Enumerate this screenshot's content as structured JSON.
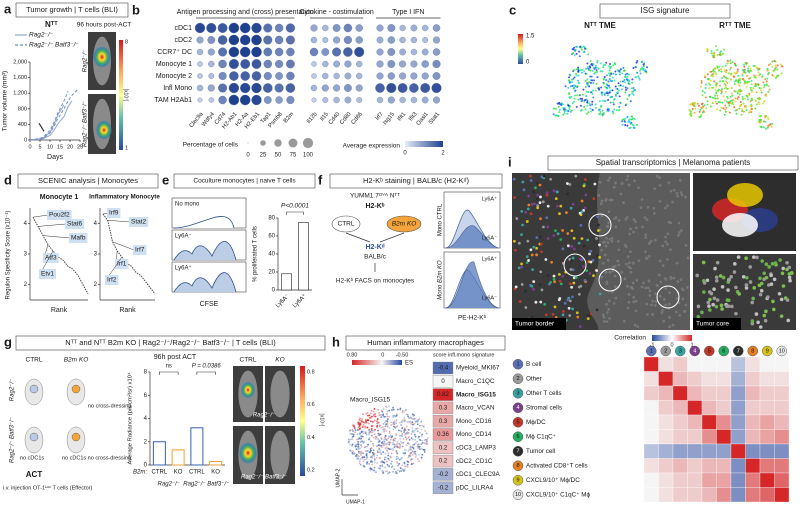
{
  "a": {
    "letter": "a",
    "title": "Tumor growth | T cells (BLI)",
    "model": "Nᵀᵀ",
    "timepoint": "96 hours post-ACT",
    "chart_data": {
      "type": "line",
      "ylabel": "Tumor volume (mm³)",
      "xlabel": "Days",
      "x": [
        0,
        5,
        7,
        10,
        12,
        14,
        17,
        19,
        21,
        24
      ],
      "xlim": [
        0,
        25
      ],
      "xticks": [
        0,
        5,
        10,
        15,
        20,
        25
      ],
      "ylim": [
        0,
        2000
      ],
      "yticks": [
        0,
        400,
        800,
        {
          "value": 1200,
          "label": "1,200"
        },
        {
          "value": 1600,
          "label": "1,600"
        },
        {
          "value": 2000,
          "label": "2,000"
        }
      ],
      "series": [
        {
          "name": "Rag2⁻/⁻",
          "color": "#8fa8d0",
          "dash": false,
          "values": [
            0,
            30,
            70,
            200,
            400,
            650,
            900,
            null,
            null,
            null
          ]
        },
        {
          "color": "#8fa8d0",
          "dash": false,
          "values": [
            0,
            20,
            40,
            120,
            250,
            420,
            600,
            850,
            1000,
            null
          ]
        },
        {
          "name": "Rag2⁻/⁻ Batf3⁻/⁻",
          "color": "#6f8fc4",
          "dash": true,
          "values": [
            0,
            40,
            90,
            250,
            450,
            700,
            1000,
            1250,
            null,
            null
          ]
        },
        {
          "color": "#6f8fc4",
          "dash": true,
          "values": [
            0,
            30,
            60,
            180,
            350,
            550,
            800,
            1000,
            1150,
            1300
          ]
        }
      ]
    },
    "images": [
      "Rag2⁻/⁻",
      "Rag2⁻/⁻ Batf3⁻/⁻"
    ],
    "colorbar": {
      "max": "8",
      "min": "1",
      "unit": "[x10⁷]"
    }
  },
  "b": {
    "letter": "b",
    "groups": [
      "Antigen processing and (cross) presentation",
      "Cytokine - costimulation",
      "Type I IFN"
    ],
    "chart_data": {
      "type": "dot",
      "categories": [
        "cDC1",
        "cDC2",
        "CCR7⁺ DC",
        "Monocyte 1",
        "Monocyte 2",
        "Infl Mono",
        "TAM H2Ab1"
      ],
      "genes": [
        [
          "Clec9a",
          "Wdfy4",
          "Cd74",
          "H2-Ab1",
          "H2-Aa",
          "H2-Eb1",
          "Tap1",
          "Psmb8",
          "B2m"
        ],
        [
          "Il12b",
          "Il15",
          "Cd40",
          "Cd80",
          "Cd86"
        ],
        [
          "Irf7",
          "Isg15",
          "Ifit1",
          "Ifit3",
          "Oasl1",
          "Stat1"
        ]
      ],
      "matrix": [
        [
          95,
          90,
          85,
          100,
          100,
          95,
          70,
          60,
          75,
          40,
          30,
          50,
          60,
          45,
          40,
          50,
          30,
          35,
          30,
          45
        ],
        [
          40,
          50,
          80,
          100,
          100,
          100,
          70,
          60,
          70,
          30,
          25,
          40,
          55,
          45,
          35,
          45,
          30,
          30,
          25,
          40
        ],
        [
          30,
          40,
          70,
          100,
          100,
          100,
          65,
          60,
          60,
          60,
          50,
          70,
          80,
          90,
          40,
          50,
          35,
          30,
          35,
          45
        ],
        [
          20,
          30,
          60,
          90,
          85,
          85,
          60,
          55,
          65,
          20,
          30,
          35,
          40,
          30,
          40,
          50,
          40,
          40,
          45,
          55
        ],
        [
          20,
          25,
          55,
          80,
          80,
          80,
          55,
          50,
          60,
          20,
          30,
          30,
          35,
          30,
          40,
          45,
          40,
          40,
          40,
          50
        ],
        [
          30,
          40,
          70,
          95,
          95,
          95,
          80,
          70,
          80,
          30,
          40,
          40,
          50,
          40,
          80,
          90,
          85,
          80,
          85,
          90
        ],
        [
          15,
          20,
          60,
          100,
          100,
          95,
          50,
          45,
          55,
          15,
          25,
          30,
          35,
          25,
          30,
          40,
          30,
          30,
          35,
          40
        ]
      ],
      "size_legend": {
        "title": "Percentage of cells",
        "values": [
          0,
          25,
          50,
          75,
          100
        ]
      },
      "color_legend": {
        "title": "Average expression",
        "ticks": [
          0,
          2
        ]
      }
    }
  },
  "c": {
    "letter": "c",
    "title": "ISG signature",
    "panels": [
      "Nᵀᵀ TME",
      "Rᵀᵀ TME"
    ],
    "colorbar": [
      1.5,
      0
    ]
  },
  "d": {
    "letter": "d",
    "title": "SCENIC analysis | Monocytes",
    "chart_data": {
      "type": "line",
      "ylabel": "Regulon Specificity Score (x10⁻¹)",
      "xlabel": "Rank",
      "ylim": [
        1.5,
        4.5
      ],
      "yticks": [
        2,
        3,
        4
      ],
      "panels": [
        {
          "title": "Monocyte 1",
          "regulons": [
            "Pou2f2",
            "Stat6",
            "Mafb",
            "Atf3",
            "Etv1"
          ],
          "values": [
            4.2,
            3.9,
            3.6,
            3.3,
            3.1,
            2.9,
            2.8,
            2.6,
            2.5,
            2.3,
            2.0,
            1.7
          ]
        },
        {
          "title": "Inflammatory Monocyte",
          "regulons": [
            "Irf9",
            "Stat2",
            "Irf7",
            "Irf1",
            "Irf2"
          ],
          "values": [
            4.3,
            4.1,
            3.4,
            3.1,
            2.9,
            2.7,
            2.6,
            2.4,
            2.3,
            2.1,
            1.9,
            1.7
          ]
        }
      ]
    }
  },
  "e": {
    "letter": "e",
    "title": "Coculture monocytes | naive T cells",
    "histograms": [
      "No mono",
      "Ly6A⁻",
      "Ly6A⁺"
    ],
    "xlabel": "CFSE",
    "chart_data": {
      "type": "bar",
      "categories": [
        "Ly6A⁻",
        "Ly6A⁺"
      ],
      "values": [
        18,
        75
      ],
      "ylim": [
        0,
        80
      ],
      "yticks": [
        0,
        20,
        40,
        60,
        80
      ],
      "ylabel": "% proliferated T cells",
      "annotation": "P<0.0001",
      "color": "#ffffff"
    }
  },
  "f": {
    "letter": "f",
    "title": "H2-Kᵇ staining | BALB/c (H2-Kᵈ)",
    "tumor": "YUMM1.7ᴼⱽᴬ Nᵀᵀ",
    "antigen": "H2-Kᵇ",
    "ctrl": "CTRL",
    "ko": "B2m KO",
    "host_mhc": "H2-Kᵈ",
    "host": "BALB/c",
    "readout": "H2-Kᵇ FACS on monocytes",
    "hist": [
      {
        "label": "Mono CTRL",
        "gates": [
          "Ly6A⁺",
          "Ly6A⁻"
        ]
      },
      {
        "label": "Mono B2m KO",
        "gates": [
          "Ly6A⁺",
          "Ly6A⁻"
        ]
      }
    ],
    "xlabel": "PE-H2-Kᵇ"
  },
  "g": {
    "letter": "g",
    "title": "Nᵀᵀ and Nᵀᵀ B2m KO | Rag2⁻/⁻/Rag2⁻/⁻ Batf3⁻/⁻ | T cells (BLI)",
    "schematic": {
      "ctrl": "CTRL",
      "ko": "B2m KO",
      "hosts": [
        "Rag2⁻/⁻",
        "Rag2⁻/⁻ Batf3⁻/⁻"
      ],
      "notes": [
        "no cross-dressing",
        "no cDC1s",
        "no cDC1s no cross-dressing"
      ],
      "act": "ACT",
      "injection": "i.v. injection OT-1ᴸᵘᶜ T cells (Effector)"
    },
    "chart_data": {
      "type": "bar",
      "title": "96h post ACT",
      "ylabel": "Average Radiance (p/s/cm²/sr) x10⁴",
      "categories": [
        "CTRL",
        "KO",
        "CTRL",
        "KO"
      ],
      "groups": [
        "Rag2⁻/⁻",
        "Rag2⁻/⁻ Batf3⁻/⁻"
      ],
      "group_label": "B2m:",
      "values": [
        2.0,
        1.3,
        3.2,
        0.3
      ],
      "colors": [
        "#3a5fb0",
        "#f0a030",
        "#3a5fb0",
        "#f0a030"
      ],
      "ylim": [
        0,
        8
      ],
      "yticks": [
        0,
        2,
        4,
        6,
        8
      ],
      "annotations": [
        "ns",
        "P = 0.0386"
      ]
    },
    "images": {
      "columns": [
        "CTRL",
        "KO"
      ],
      "rows": [
        "Rag2⁻/⁻",
        "Rag2⁻/⁻ Batf3⁻/⁻"
      ],
      "colorbar": [
        0.8,
        0.6,
        0.4,
        0.2
      ],
      "unit": "[x10⁵]"
    }
  },
  "h": {
    "letter": "h",
    "title": "Human inflammatory macrophages",
    "legend_title": "score infl.mono signature",
    "colorbar": {
      "ticks": [
        {
          "value": 0.8,
          "label": "0.80"
        },
        0,
        {
          "value": -0.5,
          "label": "-0.50"
        }
      ],
      "unit": "ES"
    },
    "umap_label": "Macro_ISG15",
    "xaxis": "UMAP-1",
    "yaxis": "UMAP-2",
    "chart_data": {
      "type": "score-list",
      "categories": [
        "Myeloid_MKI67",
        "Macro_C1QC",
        "Macro_ISG15",
        "Macro_VCAN",
        "Mono_CD16",
        "Mono_CD14",
        "cDC3_LAMP3",
        "cDC2_CD1C",
        "cDC1_CLEC9A",
        "pDC_LILRA4"
      ],
      "values": [
        -0.4,
        0,
        0.82,
        0.3,
        0.3,
        0.36,
        0.2,
        0.2,
        -0.2,
        -0.2
      ]
    }
  },
  "i": {
    "letter": "i",
    "title": "Spatial transcriptomics | Melanoma patients",
    "images": [
      "Tumor border",
      "Tumor core"
    ],
    "chart_data": {
      "type": "heatmap",
      "title": "Correlation",
      "ids": [
        1,
        2,
        3,
        4,
        5,
        6,
        7,
        8,
        9,
        10
      ],
      "categories": [
        "B cell",
        "Other",
        "Other T cells",
        "Stromal cells",
        "Mϕ/DC",
        "Mϕ C1qC⁺",
        "Tumor cell",
        "Activated CD8⁺T cells",
        "CXCL9/10⁺ Mϕ/DC",
        "CXCL9/10⁺ C1qC⁺ Mϕ"
      ],
      "colors": [
        "#5b6fb5",
        "#9a9a9a",
        "#3aa0a0",
        "#7b3f8c",
        "#c0392b",
        "#27ae60",
        "#2c2c2c",
        "#e67e22",
        "#d4c21a",
        "#e8e8e8"
      ],
      "clim": [
        -1,
        1
      ],
      "cticks": [
        -1,
        0,
        1
      ],
      "values": [
        [
          1,
          0.1,
          0.2,
          0,
          0,
          0,
          -0.3,
          0.1,
          0,
          0
        ],
        [
          0.1,
          1,
          0.3,
          0.2,
          0.1,
          0.1,
          -0.4,
          0.2,
          0.1,
          0.1
        ],
        [
          0.2,
          0.3,
          1,
          0.3,
          0.2,
          0.2,
          -0.5,
          0.3,
          0.2,
          0.2
        ],
        [
          0,
          0.2,
          0.3,
          1,
          0.3,
          0.2,
          -0.5,
          0.2,
          0.2,
          0.2
        ],
        [
          0,
          0.1,
          0.2,
          0.3,
          1,
          0.5,
          -0.5,
          0.3,
          0.4,
          0.3
        ],
        [
          0,
          0.1,
          0.2,
          0.2,
          0.5,
          1,
          -0.5,
          0.3,
          0.4,
          0.5
        ],
        [
          -0.3,
          -0.4,
          -0.5,
          -0.5,
          -0.5,
          -0.5,
          1,
          -0.6,
          -0.6,
          -0.6
        ],
        [
          0.1,
          0.2,
          0.3,
          0.2,
          0.3,
          0.3,
          -0.6,
          1,
          0.6,
          0.6
        ],
        [
          0,
          0.1,
          0.2,
          0.2,
          0.4,
          0.4,
          -0.6,
          0.6,
          1,
          0.7
        ],
        [
          0,
          0.1,
          0.2,
          0.2,
          0.3,
          0.5,
          -0.6,
          0.6,
          0.7,
          1
        ]
      ]
    }
  }
}
